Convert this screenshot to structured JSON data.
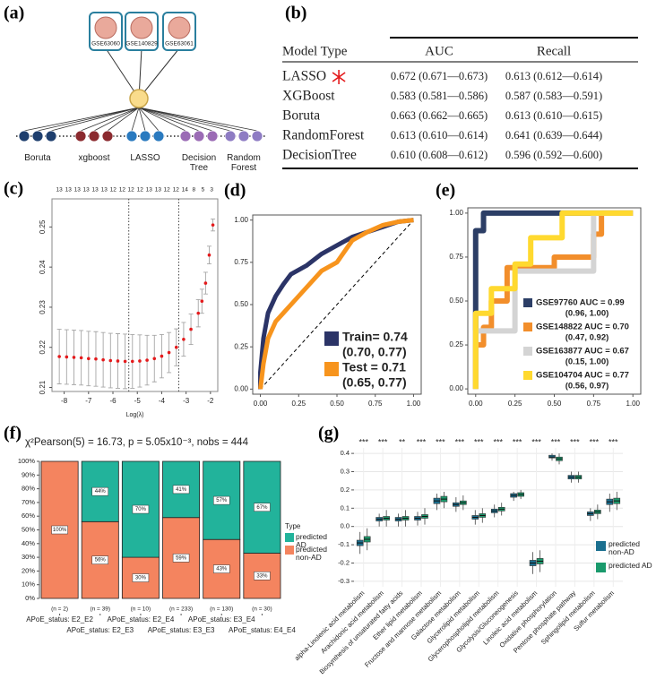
{
  "diagram": {
    "label": "(a)",
    "datasets": [
      "GSE63060",
      "GSE140829",
      "GSE63061"
    ],
    "methods": [
      "Boruta",
      "xgboost",
      "LASSO",
      "Decision Tree",
      "Random Forest"
    ]
  },
  "table": {
    "label": "(b)",
    "header": [
      "Model Type",
      "AUC",
      "Recall"
    ],
    "rows": [
      [
        "LASSO",
        "0.672 (0.671—0.673)",
        "0.613 (0.612—0.614)"
      ],
      [
        "XGBoost",
        "0.583 (0.581—0.586)",
        "0.587 (0.583—0.591)"
      ],
      [
        "Boruta",
        "0.663 (0.662—0.665)",
        "0.613 (0.610—0.615)"
      ],
      [
        "RandomForest",
        "0.613 (0.610—0.614)",
        "0.641 (0.639—0.644)"
      ],
      [
        "DecisionTree",
        "0.610 (0.608—0.612)",
        "0.596 (0.592—0.600)"
      ]
    ]
  },
  "chart_data": [
    {
      "label": "(c)",
      "type": "errorbar",
      "x_label": "Log(λ)",
      "x": [
        -8.2,
        -7.9,
        -7.6,
        -7.3,
        -7.0,
        -6.7,
        -6.4,
        -6.1,
        -5.8,
        -5.5,
        -5.2,
        -4.9,
        -4.6,
        -4.3,
        -4.0,
        -3.7,
        -3.4,
        -3.1,
        -2.8,
        -2.5,
        -2.35,
        -2.2,
        -2.05,
        -1.9
      ],
      "values": [
        0.2177,
        0.2176,
        0.2175,
        0.2174,
        0.2172,
        0.2171,
        0.2169,
        0.2167,
        0.2166,
        0.2165,
        0.2165,
        0.2166,
        0.2168,
        0.2172,
        0.2178,
        0.2187,
        0.22,
        0.222,
        0.2245,
        0.2285,
        0.2315,
        0.236,
        0.243,
        0.2505
      ],
      "errors": [
        0.0068,
        0.0068,
        0.0068,
        0.0068,
        0.0068,
        0.0068,
        0.0068,
        0.0068,
        0.0068,
        0.0068,
        0.0067,
        0.0065,
        0.0062,
        0.0058,
        0.0054,
        0.005,
        0.0046,
        0.0042,
        0.0038,
        0.0034,
        0.003,
        0.0027,
        0.0022,
        0.0015
      ],
      "color": "#e41a1c",
      "error_color": "#a6a6a6",
      "xlim": [
        -8.5,
        -1.7
      ],
      "ylim": [
        0.209,
        0.257
      ],
      "xticks": [
        -8,
        -7,
        -6,
        -5,
        -4,
        -3,
        -2
      ],
      "yticks": [
        0.21,
        0.22,
        0.23,
        0.24,
        0.25
      ],
      "vlines": [
        -5.35,
        -3.3
      ],
      "top_ticks": [
        {
          "value": -8.2,
          "label": "13"
        },
        {
          "value": -7.83,
          "label": "13"
        },
        {
          "value": -7.46,
          "label": "13"
        },
        {
          "value": -7.1,
          "label": "13"
        },
        {
          "value": -6.73,
          "label": "13"
        },
        {
          "value": -6.36,
          "label": "13"
        },
        {
          "value": -5.99,
          "label": "12"
        },
        {
          "value": -5.62,
          "label": "12"
        },
        {
          "value": -5.26,
          "label": "12"
        },
        {
          "value": -4.89,
          "label": "12"
        },
        {
          "value": -4.52,
          "label": "13"
        },
        {
          "value": -4.15,
          "label": "13"
        },
        {
          "value": -3.79,
          "label": "12"
        },
        {
          "value": -3.42,
          "label": "12"
        },
        {
          "value": -3.05,
          "label": "14"
        },
        {
          "value": -2.68,
          "label": "8"
        },
        {
          "value": -2.31,
          "label": "5"
        },
        {
          "value": -1.95,
          "label": "3"
        }
      ]
    },
    {
      "label": "(d)",
      "type": "line",
      "diagonal": true,
      "xlim": [
        -0.05,
        1.05
      ],
      "ylim": [
        -0.03,
        1.03
      ],
      "xticks": [
        {
          "value": 0,
          "label": "0.00"
        },
        0.25,
        {
          "value": 0.5,
          "label": "0.50"
        },
        0.75,
        {
          "value": 1,
          "label": "1.00"
        }
      ],
      "yticks": [
        {
          "value": 0,
          "label": "0.00"
        },
        0.25,
        {
          "value": 0.5,
          "label": "0.50"
        },
        0.75,
        {
          "value": 1,
          "label": "1.00"
        }
      ],
      "series": [
        {
          "name": "Train= 0.74",
          "ci": "(0.70, 0.77)",
          "color": "#2b3467",
          "x": [
            0,
            0,
            0.02,
            0.05,
            0.1,
            0.15,
            0.2,
            0.3,
            0.4,
            0.5,
            0.6,
            0.7,
            0.8,
            0.9,
            1
          ],
          "values": [
            0,
            0.1,
            0.3,
            0.45,
            0.55,
            0.62,
            0.68,
            0.73,
            0.8,
            0.85,
            0.9,
            0.93,
            0.96,
            0.99,
            1
          ]
        },
        {
          "name": "Test = 0.71",
          "ci": "(0.65, 0.77)",
          "color": "#f7941d",
          "x": [
            0,
            0.02,
            0.05,
            0.1,
            0.15,
            0.2,
            0.3,
            0.4,
            0.5,
            0.6,
            0.7,
            0.8,
            0.9,
            1
          ],
          "values": [
            0,
            0.15,
            0.3,
            0.4,
            0.45,
            0.5,
            0.6,
            0.7,
            0.75,
            0.88,
            0.93,
            0.97,
            0.99,
            1
          ]
        }
      ]
    },
    {
      "label": "(e)",
      "type": "line",
      "xlim": [
        -0.05,
        1.05
      ],
      "ylim": [
        -0.03,
        1.03
      ],
      "xticks": [
        {
          "value": 0,
          "label": "0.00"
        },
        0.25,
        {
          "value": 0.5,
          "label": "0.50"
        },
        0.75,
        {
          "value": 1,
          "label": "1.00"
        }
      ],
      "yticks": [
        {
          "value": 0,
          "label": "0.00"
        },
        0.25,
        {
          "value": 0.5,
          "label": "0.50"
        },
        0.75,
        {
          "value": 1,
          "label": "1.00"
        }
      ],
      "series": [
        {
          "name": "GSE97760 AUC = 0.99",
          "ci": "(0.96, 1.00)",
          "color": "#2c3e66",
          "x": [
            0,
            0,
            0.05,
            0.05,
            0.75,
            1
          ],
          "values": [
            0,
            0.9,
            0.9,
            1,
            1,
            1
          ]
        },
        {
          "name": "GSE148822 AUC = 0.70",
          "ci": "(0.47, 0.92)",
          "color": "#f28e2b",
          "x": [
            0,
            0,
            0.05,
            0.05,
            0.1,
            0.1,
            0.2,
            0.2,
            0.5,
            0.5,
            0.75,
            0.75,
            0.8,
            0.8,
            1
          ],
          "values": [
            0,
            0.25,
            0.25,
            0.35,
            0.35,
            0.5,
            0.5,
            0.69,
            0.69,
            0.75,
            0.75,
            0.88,
            0.88,
            1,
            1
          ]
        },
        {
          "name": "GSE163877 AUC = 0.67",
          "ci": "(0.15, 1.00)",
          "color": "#d4d4d4",
          "x": [
            0,
            0,
            0.25,
            0.25,
            0.75,
            0.75,
            1
          ],
          "values": [
            0,
            0.33,
            0.33,
            0.67,
            0.67,
            1,
            1
          ]
        },
        {
          "name": "GSE104704 AUC = 0.77",
          "ci": "(0.56, 0.97)",
          "color": "#ffd92f",
          "x": [
            0,
            0,
            0.1,
            0.1,
            0.25,
            0.25,
            0.35,
            0.35,
            0.55,
            0.55,
            1
          ],
          "values": [
            0,
            0.43,
            0.43,
            0.57,
            0.57,
            0.71,
            0.71,
            0.86,
            0.86,
            1,
            1
          ]
        }
      ]
    },
    {
      "label": "(f)",
      "type": "bar",
      "stacked": true,
      "title": "χ²Pearson(5) = 16.73, p = 5.05x10⁻³, nobs = 444",
      "categories": [
        "APoE_status: E2_E2",
        "APoE_status: E2_E3",
        "APoE_status: E2_E4",
        "APoE_status: E3_E3",
        "APoE_status: E3_E4",
        "APoE_status: E4_E4"
      ],
      "n_labels": [
        "(n = 2)",
        "(n = 39)",
        "(n = 10)",
        "(n = 233)",
        "(n = 130)",
        "(n = 30)"
      ],
      "ylim": [
        0,
        100
      ],
      "yticks": [
        {
          "value": 0,
          "label": "0%"
        },
        {
          "value": 10,
          "label": "10%"
        },
        {
          "value": 20,
          "label": "20%"
        },
        {
          "value": 30,
          "label": "30%"
        },
        {
          "value": 40,
          "label": "40%"
        },
        {
          "value": 50,
          "label": "50%"
        },
        {
          "value": 60,
          "label": "60%"
        },
        {
          "value": 70,
          "label": "70%"
        },
        {
          "value": 80,
          "label": "80%"
        },
        {
          "value": 90,
          "label": "90%"
        },
        {
          "value": 100,
          "label": "100%"
        }
      ],
      "legend_title": "Type",
      "series": [
        {
          "name": "predicted AD",
          "color": "#22b39b",
          "values": [
            0,
            44,
            70,
            41,
            57,
            67
          ],
          "value_labels": [
            null,
            "44%",
            "70%",
            "41%",
            "57%",
            "67%"
          ]
        },
        {
          "name": "predicted non-AD",
          "color": "#f4845f",
          "values": [
            100,
            56,
            30,
            59,
            43,
            33
          ],
          "value_labels": [
            "100%",
            "56%",
            "30%",
            "59%",
            "43%",
            "33%"
          ]
        }
      ]
    },
    {
      "label": "(g)",
      "type": "box",
      "grid": true,
      "categories": [
        "alpha-Linolenic acid metabolism",
        "Arachidonic acid metabolism",
        "Biosynthesis of unsaturated fatty acids",
        "Ether lipid metabolism",
        "Fructose and mannose metabolism",
        "Galactose metabolism",
        "Glycerolipid metabolism",
        "Glycerophospholipid metabolism",
        "Glycolysis/Gluconeogenesis",
        "Linoleic acid metabolism",
        "Oxidative phosphorylation",
        "Pentose phosphate pathway",
        "Sphingolipid metabolism",
        "Sulfur metabolism"
      ],
      "significance": [
        "***",
        "***",
        "**",
        "***",
        "***",
        "***",
        "***",
        "***",
        "***",
        "***",
        "***",
        "***",
        "***",
        "***"
      ],
      "ylim": [
        -0.33,
        0.43
      ],
      "yticks": [
        -0.3,
        -0.2,
        -0.1,
        {
          "value": 0,
          "label": "0.0"
        },
        0.1,
        0.2,
        0.3,
        0.4
      ],
      "series": [
        {
          "name": "predicted non-AD",
          "color": "#1b6f8f",
          "low": [
            -0.15,
            0.0,
            0.0,
            0.005,
            0.09,
            0.08,
            0.01,
            0.05,
            0.14,
            -0.26,
            0.36,
            0.24,
            0.03,
            0.08
          ],
          "q1": [
            -0.105,
            0.03,
            0.03,
            0.035,
            0.125,
            0.11,
            0.04,
            0.075,
            0.16,
            -0.215,
            0.375,
            0.26,
            0.06,
            0.12
          ],
          "median": [
            -0.09,
            0.04,
            0.04,
            0.045,
            0.14,
            0.12,
            0.05,
            0.085,
            0.17,
            -0.2,
            0.38,
            0.27,
            0.07,
            0.135
          ],
          "q3": [
            -0.075,
            0.05,
            0.05,
            0.055,
            0.155,
            0.13,
            0.06,
            0.095,
            0.18,
            -0.185,
            0.39,
            0.28,
            0.08,
            0.15
          ],
          "high": [
            -0.03,
            0.07,
            0.07,
            0.08,
            0.18,
            0.16,
            0.09,
            0.12,
            0.19,
            -0.14,
            0.4,
            0.3,
            0.1,
            0.18
          ]
        },
        {
          "name": "predicted AD",
          "color": "#1a9a6c",
          "low": [
            -0.13,
            0.0,
            0.0,
            0.01,
            0.1,
            0.09,
            0.02,
            0.06,
            0.15,
            -0.25,
            0.34,
            0.24,
            0.04,
            0.09
          ],
          "q1": [
            -0.085,
            0.035,
            0.035,
            0.045,
            0.135,
            0.12,
            0.05,
            0.085,
            0.165,
            -0.205,
            0.36,
            0.26,
            0.07,
            0.125
          ],
          "median": [
            -0.07,
            0.045,
            0.045,
            0.055,
            0.15,
            0.13,
            0.06,
            0.095,
            0.175,
            -0.19,
            0.37,
            0.27,
            0.08,
            0.14
          ],
          "q3": [
            -0.055,
            0.055,
            0.055,
            0.065,
            0.165,
            0.14,
            0.07,
            0.105,
            0.185,
            -0.175,
            0.38,
            0.28,
            0.09,
            0.155
          ],
          "high": [
            -0.01,
            0.09,
            0.09,
            0.1,
            0.19,
            0.17,
            0.1,
            0.13,
            0.2,
            -0.13,
            0.4,
            0.3,
            0.12,
            0.19
          ]
        }
      ]
    }
  ]
}
